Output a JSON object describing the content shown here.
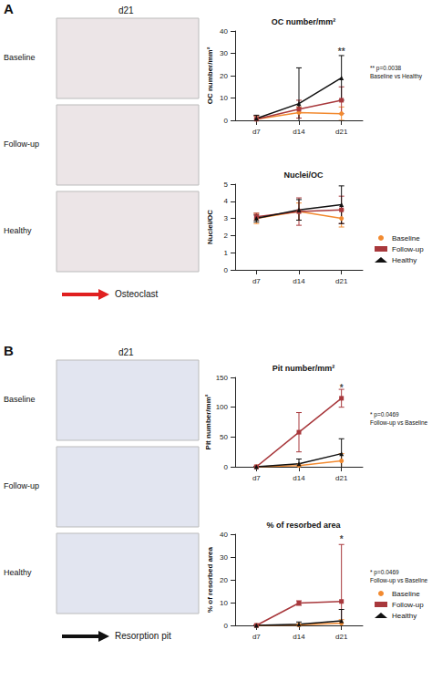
{
  "panels": [
    {
      "label": "A",
      "day": "d21",
      "rows": [
        "Baseline",
        "Follow-up",
        "Healthy"
      ],
      "key": "Osteoclast"
    },
    {
      "label": "B",
      "day": "d21",
      "rows": [
        "Baseline",
        "Follow-up",
        "Healthy"
      ],
      "key": "Resorption pit"
    }
  ],
  "chart_data": [
    {
      "type": "line",
      "title": "OC number/mm²",
      "y_label": "OC number/mm²",
      "categories": [
        "d7",
        "d14",
        "d21"
      ],
      "ylim": [
        0,
        40
      ],
      "yticks": [
        0,
        10,
        20,
        30,
        40
      ],
      "series": [
        {
          "name": "Baseline",
          "color": "#f28a30",
          "marker": "circle",
          "values": [
            0.5,
            3.5,
            3
          ],
          "errors": [
            1.5,
            2.5,
            3
          ]
        },
        {
          "name": "Follow-up",
          "color": "#a8383c",
          "marker": "square",
          "values": [
            0.5,
            5,
            9
          ],
          "errors": [
            1.5,
            4,
            6
          ]
        },
        {
          "name": "Healthy",
          "color": "#111111",
          "marker": "triangle",
          "values": [
            0.8,
            7.5,
            19
          ],
          "errors": [
            1.5,
            16,
            10
          ]
        }
      ],
      "significance": {
        "text": "**",
        "category": "d21",
        "y": 31
      },
      "note": [
        "** p=0.0038",
        "Baseline vs Healthy"
      ]
    },
    {
      "type": "line",
      "title": "Nuclei/OC",
      "y_label": "Nuclei/OC",
      "categories": [
        "d7",
        "d14",
        "d21"
      ],
      "ylim": [
        0,
        5
      ],
      "yticks": [
        0,
        1,
        2,
        3,
        4,
        5
      ],
      "legend": "right",
      "series": [
        {
          "name": "Baseline",
          "color": "#f28a30",
          "marker": "circle",
          "values": [
            3.0,
            3.4,
            3.0
          ],
          "errors": [
            0.3,
            0.5,
            0.5
          ]
        },
        {
          "name": "Follow-up",
          "color": "#a8383c",
          "marker": "square",
          "values": [
            3.1,
            3.4,
            3.5
          ],
          "errors": [
            0.2,
            0.8,
            0.8
          ]
        },
        {
          "name": "Healthy",
          "color": "#111111",
          "marker": "triangle",
          "values": [
            3.0,
            3.5,
            3.8
          ],
          "errors": [
            0.2,
            0.6,
            1.1
          ]
        }
      ]
    },
    {
      "type": "line",
      "title": "Pit number/mm²",
      "y_label": "Pit number/mm²",
      "categories": [
        "d7",
        "d14",
        "d21"
      ],
      "ylim": [
        0,
        150
      ],
      "yticks": [
        0,
        50,
        100,
        150
      ],
      "series": [
        {
          "name": "Baseline",
          "color": "#f28a30",
          "marker": "circle",
          "values": [
            0,
            2,
            10
          ],
          "errors": [
            0,
            3,
            12
          ]
        },
        {
          "name": "Follow-up",
          "color": "#a8383c",
          "marker": "square",
          "values": [
            0,
            58,
            115
          ],
          "errors": [
            0,
            33,
            15
          ]
        },
        {
          "name": "Healthy",
          "color": "#111111",
          "marker": "triangle",
          "values": [
            0,
            5,
            22
          ],
          "errors": [
            0,
            8,
            25
          ]
        }
      ],
      "significance": {
        "text": "*",
        "category": "d21",
        "y": 133
      },
      "note": [
        "* p=0.0469",
        "Follow-up vs Baseline"
      ]
    },
    {
      "type": "line",
      "title": "% of resorbed area",
      "y_label": "% of resorbed area",
      "categories": [
        "d7",
        "d14",
        "d21"
      ],
      "ylim": [
        0,
        40
      ],
      "yticks": [
        0,
        10,
        20,
        30,
        40
      ],
      "legend": "right",
      "series": [
        {
          "name": "Baseline",
          "color": "#f28a30",
          "marker": "circle",
          "values": [
            0,
            0.2,
            1
          ],
          "errors": [
            0,
            0.3,
            1.5
          ]
        },
        {
          "name": "Follow-up",
          "color": "#a8383c",
          "marker": "square",
          "values": [
            0,
            9.8,
            10.5
          ],
          "errors": [
            0,
            1,
            25
          ]
        },
        {
          "name": "Healthy",
          "color": "#111111",
          "marker": "triangle",
          "values": [
            0,
            0.5,
            2
          ],
          "errors": [
            0,
            1,
            5
          ]
        }
      ],
      "significance": {
        "text": "*",
        "category": "d21",
        "y": 38
      },
      "note": [
        "* p=0.0469",
        "Follow-up vs Baseline"
      ]
    }
  ]
}
